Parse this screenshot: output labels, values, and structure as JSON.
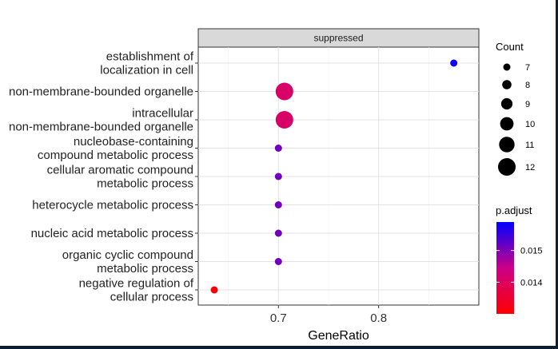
{
  "chart_data": {
    "type": "scatter",
    "panel": "suppressed",
    "xlabel": "GeneRatio",
    "ylabel": "",
    "xlim": [
      0.62,
      0.9
    ],
    "xticks": [
      0.7,
      0.8
    ],
    "xtick_labels": [
      "0.7",
      "0.8"
    ],
    "grid": true,
    "categories": [
      [
        "establishment of",
        "localization in cell"
      ],
      [
        "non-membrane-bounded organelle"
      ],
      [
        "intracellular",
        "non-membrane-bounded organelle"
      ],
      [
        "nucleobase-containing",
        "compound metabolic process"
      ],
      [
        "cellular aromatic compound",
        "metabolic process"
      ],
      [
        "heterocycle metabolic process"
      ],
      [
        "nucleic acid metabolic process"
      ],
      [
        "organic cyclic compound",
        "metabolic process"
      ],
      [
        "negative regulation of",
        "cellular process"
      ]
    ],
    "points": [
      {
        "x": 0.875,
        "count": 7,
        "p_adjust": 0.0158
      },
      {
        "x": 0.706,
        "count": 12,
        "p_adjust": 0.0141
      },
      {
        "x": 0.706,
        "count": 12,
        "p_adjust": 0.0141
      },
      {
        "x": 0.7,
        "count": 7,
        "p_adjust": 0.0151
      },
      {
        "x": 0.7,
        "count": 7,
        "p_adjust": 0.0151
      },
      {
        "x": 0.7,
        "count": 7,
        "p_adjust": 0.0151
      },
      {
        "x": 0.7,
        "count": 7,
        "p_adjust": 0.0151
      },
      {
        "x": 0.7,
        "count": 7,
        "p_adjust": 0.0151
      },
      {
        "x": 0.636,
        "count": 7,
        "p_adjust": 0.0131
      }
    ],
    "size_legend": {
      "title": "Count",
      "values": [
        7,
        8,
        9,
        10,
        11,
        12
      ],
      "labels": [
        "7",
        "8",
        "9",
        "10",
        "11",
        "12"
      ]
    },
    "color_legend": {
      "title": "p.adjust",
      "range": [
        0.013,
        0.0159
      ],
      "ticks": [
        0.015,
        0.014
      ],
      "labels": [
        "0.015",
        "0.014"
      ],
      "low_color": "#ff0000",
      "high_color": "#0000ff"
    }
  }
}
